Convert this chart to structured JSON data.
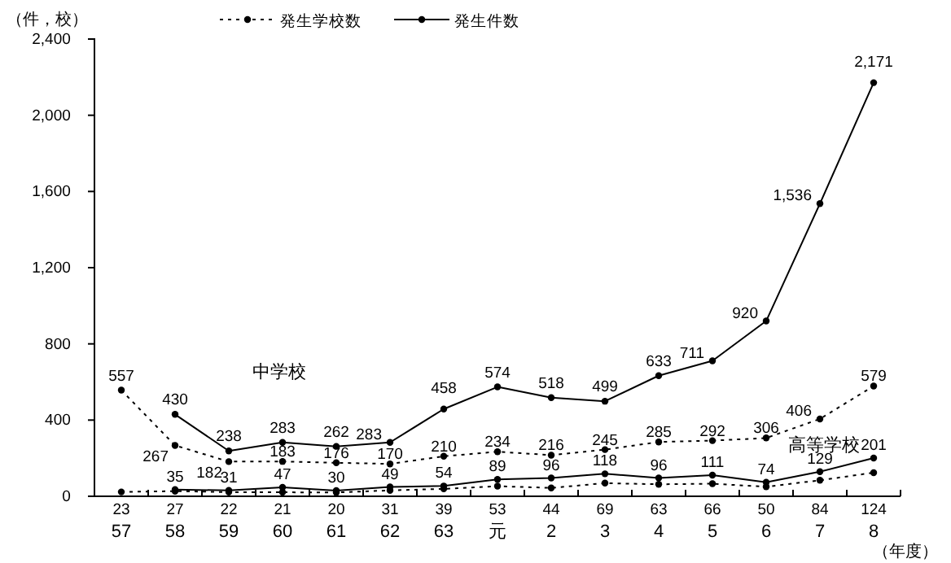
{
  "chart_data": {
    "type": "line",
    "xlabel": "（年度）",
    "ylabel": "（件，校）",
    "categories": [
      "57",
      "58",
      "59",
      "60",
      "61",
      "62",
      "63",
      "元",
      "2",
      "3",
      "4",
      "5",
      "6",
      "7",
      "8"
    ],
    "ylim": [
      0,
      2400
    ],
    "yticks": [
      0,
      {
        "value": 400,
        "label": "400"
      },
      {
        "value": 800,
        "label": "800"
      },
      {
        "value": 1200,
        "label": "1,200"
      },
      {
        "value": 1600,
        "label": "1,600"
      },
      {
        "value": 2000,
        "label": "2,000"
      },
      {
        "value": 2400,
        "label": "2,400"
      }
    ],
    "grid": false,
    "legend": "top",
    "marker": "circle",
    "series": [
      {
        "name": "発生学校数",
        "color": "#000000",
        "line_style": "dotted",
        "values": [
          557,
          267,
          182,
          183,
          176,
          170,
          210,
          234,
          216,
          245,
          285,
          292,
          306,
          406,
          579
        ],
        "value_labels": [
          "557",
          "267",
          "182",
          "183",
          "176",
          "170",
          "210",
          "234",
          "216",
          "245",
          "285",
          "292",
          "306",
          "406",
          "579"
        ]
      },
      {
        "name": "発生件数",
        "color": "#000000",
        "line_style": "solid",
        "values": [
          null,
          430,
          238,
          283,
          262,
          283,
          458,
          574,
          518,
          499,
          633,
          711,
          920,
          1536,
          2171
        ],
        "value_labels": [
          null,
          "430",
          "238",
          "283",
          "262",
          "283",
          "458",
          "574",
          "518",
          "499",
          "633",
          "711",
          "920",
          "1,536",
          "2,171"
        ]
      },
      {
        "color": "#000000",
        "line_style": "solid",
        "values": [
          null,
          35,
          31,
          47,
          30,
          49,
          54,
          89,
          96,
          118,
          96,
          111,
          74,
          129,
          201
        ],
        "value_labels": [
          null,
          "35",
          "31",
          "47",
          "30",
          "49",
          "54",
          "89",
          "96",
          "118",
          "96",
          "111",
          "74",
          "129",
          "201"
        ]
      },
      {
        "color": "#000000",
        "line_style": "dotted",
        "values": [
          23,
          27,
          22,
          21,
          20,
          31,
          39,
          53,
          44,
          69,
          63,
          66,
          50,
          84,
          124
        ],
        "value_labels": [
          "23",
          "27",
          "22",
          "21",
          "20",
          "31",
          "39",
          "53",
          "44",
          "69",
          "63",
          "66",
          "50",
          "84",
          "124"
        ]
      }
    ],
    "annotations": [
      "中学校",
      "高等学校"
    ]
  }
}
